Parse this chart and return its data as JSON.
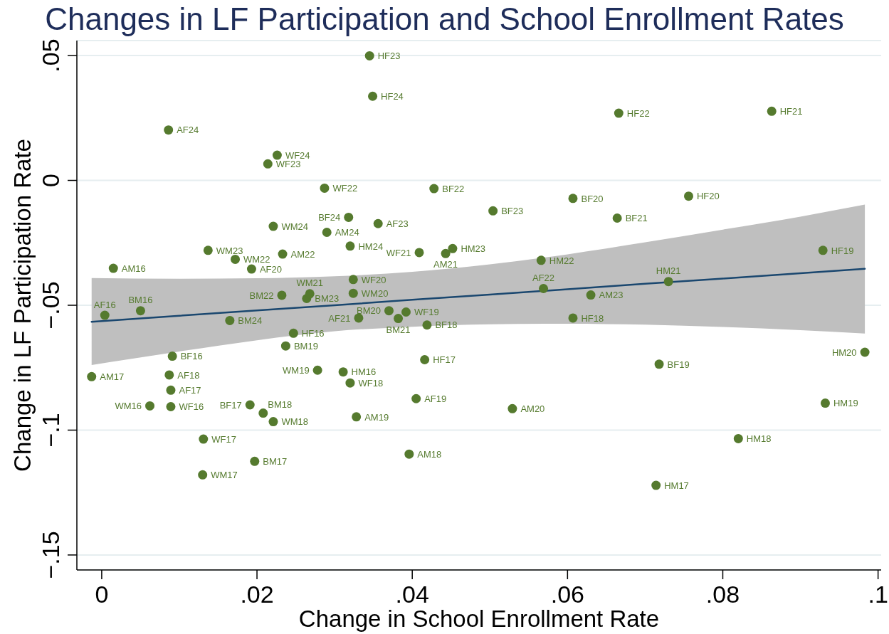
{
  "chart_data": {
    "type": "scatter",
    "title": "Changes in LF Participation and School Enrollment Rates",
    "xlabel": "Change in School Enrollment Rate",
    "ylabel": "Change in LF Participation Rate",
    "xlim": [
      -0.0032,
      0.1004
    ],
    "ylim": [
      -0.156,
      0.056
    ],
    "xticks": [
      0,
      {
        "value": 0.02,
        "label": ".02"
      },
      {
        "value": 0.04,
        "label": ".04"
      },
      {
        "value": 0.06,
        "label": ".06"
      },
      {
        "value": 0.08,
        "label": ".08"
      },
      {
        "value": 0.1,
        "label": ".1"
      }
    ],
    "yticks": [
      {
        "value": -0.15,
        "label": "−.15"
      },
      {
        "value": -0.1,
        "label": "−.1"
      },
      {
        "value": -0.05,
        "label": "−.05"
      },
      0,
      {
        "value": 0.05,
        "label": ".05"
      }
    ],
    "grid": "y",
    "series": [
      {
        "type": "scatter",
        "color": "#557a2e",
        "marker": "circle",
        "x": [
          0.0004,
          0.0089,
          0.0087,
          0.0405,
          0.0193,
          0.0331,
          0.0569,
          0.0356,
          0.0086,
          0.0015,
          -0.0013,
          0.0396,
          0.0328,
          0.0529,
          0.0443,
          0.0233,
          0.063,
          0.029,
          0.0091,
          0.0191,
          0.0419,
          0.0718,
          0.0607,
          0.0664,
          0.0428,
          0.0504,
          0.0318,
          0.005,
          0.0197,
          0.0208,
          0.0237,
          0.037,
          0.0382,
          0.0232,
          0.0264,
          0.0165,
          0.0247,
          0.0416,
          0.0607,
          0.0929,
          0.0756,
          0.0863,
          0.0666,
          0.0345,
          0.0349,
          0.0311,
          0.0714,
          0.082,
          0.0932,
          0.0983,
          0.073,
          0.0566,
          0.0452,
          0.032,
          0.0089,
          0.0131,
          0.032,
          0.0392,
          0.0324,
          0.0409,
          0.0287,
          0.0214,
          0.0226,
          0.0062,
          0.013,
          0.0221,
          0.0278,
          0.0324,
          0.0268,
          0.0172,
          0.0137,
          0.0221
        ],
        "values": [
          -0.054,
          -0.084,
          -0.0779,
          -0.0874,
          -0.0355,
          -0.0551,
          -0.0433,
          -0.0173,
          0.0202,
          -0.0352,
          -0.0786,
          -0.1096,
          -0.0947,
          -0.0914,
          -0.0293,
          -0.0295,
          -0.0459,
          -0.0208,
          -0.0704,
          -0.0899,
          -0.0579,
          -0.0736,
          -0.0072,
          -0.0151,
          -0.0033,
          -0.0122,
          -0.0148,
          -0.0522,
          -0.1125,
          -0.0932,
          -0.0663,
          -0.0522,
          -0.0553,
          -0.046,
          -0.0473,
          -0.0561,
          -0.0612,
          -0.0718,
          -0.0551,
          -0.028,
          -0.0063,
          0.0277,
          0.0269,
          0.0499,
          0.0337,
          -0.0767,
          -0.1221,
          -0.1034,
          -0.0892,
          -0.0688,
          -0.0405,
          -0.032,
          -0.0273,
          -0.0263,
          -0.0906,
          -0.1036,
          -0.0811,
          -0.0527,
          -0.0397,
          -0.0289,
          -0.0031,
          0.0066,
          0.0101,
          -0.0903,
          -0.1179,
          -0.0966,
          -0.076,
          -0.0452,
          -0.0454,
          -0.0316,
          -0.028,
          -0.0184
        ],
        "value_labels": [
          "AF16",
          "AF17",
          "AF18",
          "AF19",
          "AF20",
          "AF21",
          "AF22",
          "AF23",
          "AF24",
          "AM16",
          "AM17",
          "AM18",
          "AM19",
          "AM20",
          "AM21",
          "AM22",
          "AM23",
          "AM24",
          "BF16",
          "BF17",
          "BF18",
          "BF19",
          "BF20",
          "BF21",
          "BF22",
          "BF23",
          "BF24",
          "BM16",
          "BM17",
          "BM18",
          "BM19",
          "BM20",
          "BM21",
          "BM22",
          "BM23",
          "BM24",
          "HF16",
          "HF17",
          "HF18",
          "HF19",
          "HF20",
          "HF21",
          "HF22",
          "HF23",
          "HF24",
          "HM16",
          "HM17",
          "HM18",
          "HM19",
          "HM20",
          "HM21",
          "HM22",
          "HM23",
          "HM24",
          "WF16",
          "WF17",
          "WF18",
          "WF19",
          "WF20",
          "WF21",
          "WF22",
          "WF23",
          "WF24",
          "WM16",
          "WM17",
          "WM18",
          "WM19",
          "WM20",
          "WM21",
          "WM22",
          "WM23",
          "WM24"
        ]
      },
      {
        "type": "line",
        "color": "#1a476f",
        "x": [
          -0.0013,
          0.01,
          0.02,
          0.03,
          0.04,
          0.05,
          0.06,
          0.07,
          0.08,
          0.09,
          0.0983
        ],
        "values": [
          -0.0566,
          -0.0542,
          -0.0521,
          -0.05,
          -0.0478,
          -0.0457,
          -0.0436,
          -0.0414,
          -0.0393,
          -0.0372,
          -0.0354
        ],
        "lower": [
          -0.0739,
          -0.0685,
          -0.064,
          -0.0604,
          -0.0586,
          -0.0576,
          -0.0574,
          -0.0578,
          -0.0587,
          -0.06,
          -0.0613
        ],
        "upper": [
          -0.0391,
          -0.0394,
          -0.0392,
          -0.0384,
          -0.0366,
          -0.0336,
          -0.0296,
          -0.0248,
          -0.0197,
          -0.0145,
          -0.0097
        ]
      }
    ]
  }
}
